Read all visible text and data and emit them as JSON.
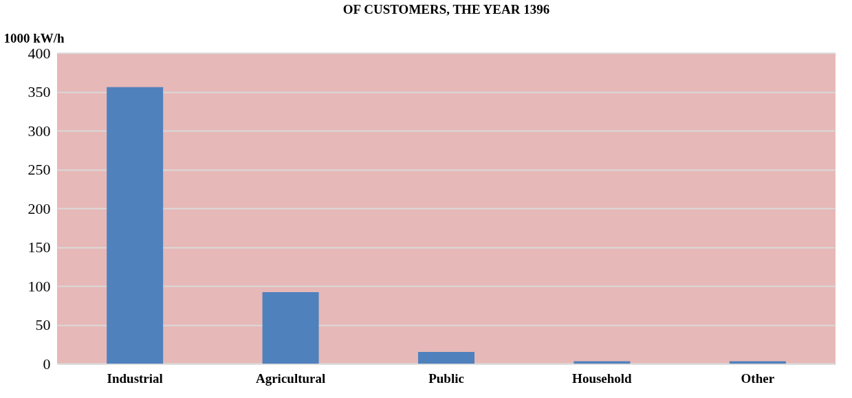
{
  "chart_data": {
    "type": "bar",
    "title": "OF CUSTOMERS, THE YEAR 1396",
    "ylabel": "1000 kW/h",
    "categories": [
      "Industrial",
      "Agricultural",
      "Public",
      "Household",
      "Other"
    ],
    "values": [
      356,
      92,
      15,
      3,
      3
    ],
    "color": "#4f81bd",
    "ylim": [
      0,
      400
    ],
    "yticks": [
      0,
      50,
      100,
      150,
      200,
      250,
      300,
      350,
      400
    ],
    "grid": "y"
  }
}
